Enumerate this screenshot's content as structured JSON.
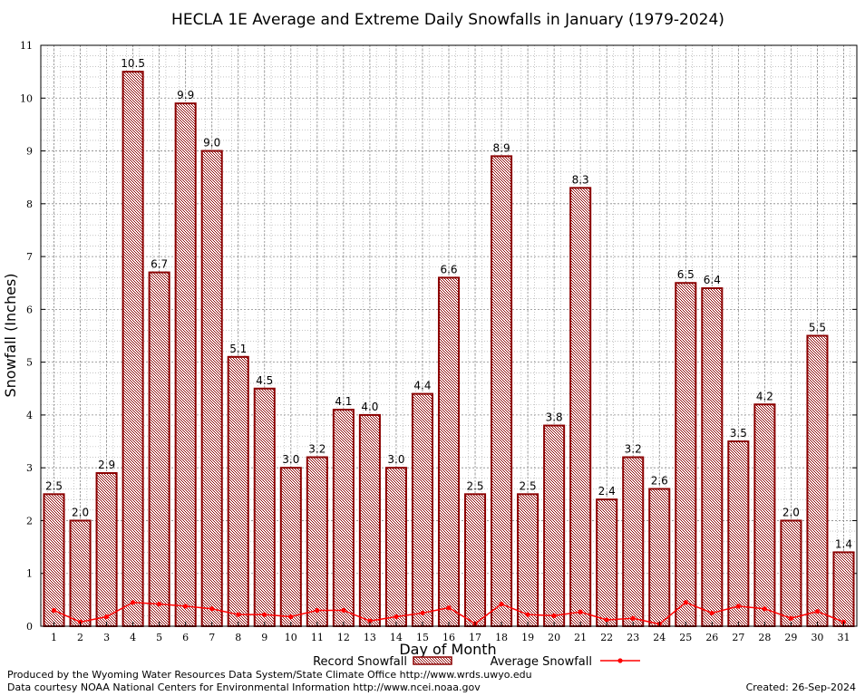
{
  "chart_data": {
    "type": "bar",
    "title": "HECLA 1E Average and Extreme Daily Snowfalls in January (1979-2024)",
    "xlabel": "Day of Month",
    "ylabel": "Snowfall (Inches)",
    "ylim": [
      0,
      11
    ],
    "yticks": [
      "0",
      "1",
      "2",
      "3",
      "4",
      "5",
      "6",
      "7",
      "8",
      "9",
      "10",
      "11"
    ],
    "grid": true,
    "legend_position": "bottom",
    "categories": [
      "1",
      "2",
      "3",
      "4",
      "5",
      "6",
      "7",
      "8",
      "9",
      "10",
      "11",
      "12",
      "13",
      "14",
      "15",
      "16",
      "17",
      "18",
      "19",
      "20",
      "21",
      "22",
      "23",
      "24",
      "25",
      "26",
      "27",
      "28",
      "29",
      "30",
      "31"
    ],
    "series": [
      {
        "name": "Record Snowfall",
        "kind": "bar",
        "values": [
          2.5,
          2.0,
          2.9,
          10.5,
          6.7,
          9.9,
          9.0,
          5.1,
          4.5,
          3.0,
          3.2,
          4.1,
          4.0,
          3.0,
          4.4,
          6.6,
          2.5,
          8.9,
          2.5,
          3.8,
          8.3,
          2.4,
          3.2,
          2.6,
          6.5,
          6.4,
          3.5,
          4.2,
          2.0,
          5.5,
          1.4
        ],
        "labels": [
          "2.5",
          "2.0",
          "2.9",
          "10.5",
          "6.7",
          "9.9",
          "9.0",
          "5.1",
          "4.5",
          "3.0",
          "3.2",
          "4.1",
          "4.0",
          "3.0",
          "4.4",
          "6.6",
          "2.5",
          "8.9",
          "2.5",
          "3.8",
          "8.3",
          "2.4",
          "3.2",
          "2.6",
          "6.5",
          "6.4",
          "3.5",
          "4.2",
          "2.0",
          "5.5",
          "1.4"
        ],
        "color": "#8b0000"
      },
      {
        "name": "Average Snowfall",
        "kind": "line",
        "values": [
          0.3,
          0.08,
          0.18,
          0.45,
          0.42,
          0.38,
          0.33,
          0.22,
          0.22,
          0.18,
          0.3,
          0.3,
          0.1,
          0.18,
          0.25,
          0.35,
          0.05,
          0.42,
          0.22,
          0.2,
          0.27,
          0.12,
          0.15,
          0.04,
          0.45,
          0.25,
          0.38,
          0.33,
          0.15,
          0.28,
          0.08
        ],
        "color": "#ff0000"
      }
    ]
  },
  "legend": {
    "record_label": "Record Snowfall",
    "average_label": "Average Snowfall"
  },
  "footer": {
    "line1": "Produced by the Wyoming Water Resources Data System/State Climate Office http://www.wrds.uwyo.edu",
    "line2": "Data courtesy NOAA National Centers for Environmental Information http://www.ncei.noaa.gov",
    "created": "Created:  26-Sep-2024"
  },
  "colors": {
    "bar_stroke": "#8b0000",
    "line": "#ff0000",
    "grid": "#a0a0a0"
  }
}
